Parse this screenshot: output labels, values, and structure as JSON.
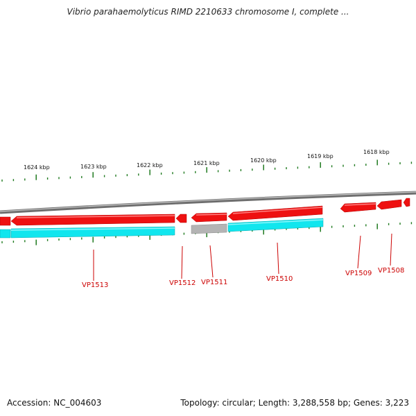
{
  "title": "Vibrio parahaemolyticus RIMD 2210633 chromosome I, complete ...",
  "footer": {
    "accession": "Accession: NC_004603",
    "summary": "Topology: circular; Length: 3,288,558 bp; Genes: 3,223"
  },
  "colors": {
    "backbone": "#8a8a8a",
    "forward_gene": "#ee1111",
    "reverse_cds": "#11e6ee",
    "reverse_other": "#b4b4b4",
    "tick": "#1f7a1f",
    "gene_label": "#cc0000",
    "scale_label": "#111111"
  },
  "scale_labels": [
    "1624 kbp",
    "1623 kbp",
    "1622 kbp",
    "1621 kbp",
    "1620 kbp",
    "1619 kbp",
    "1618 kbp"
  ],
  "gene_labels": [
    "VP1513",
    "VP1512",
    "VP1511",
    "VP1510",
    "VP1509",
    "VP1508"
  ]
}
